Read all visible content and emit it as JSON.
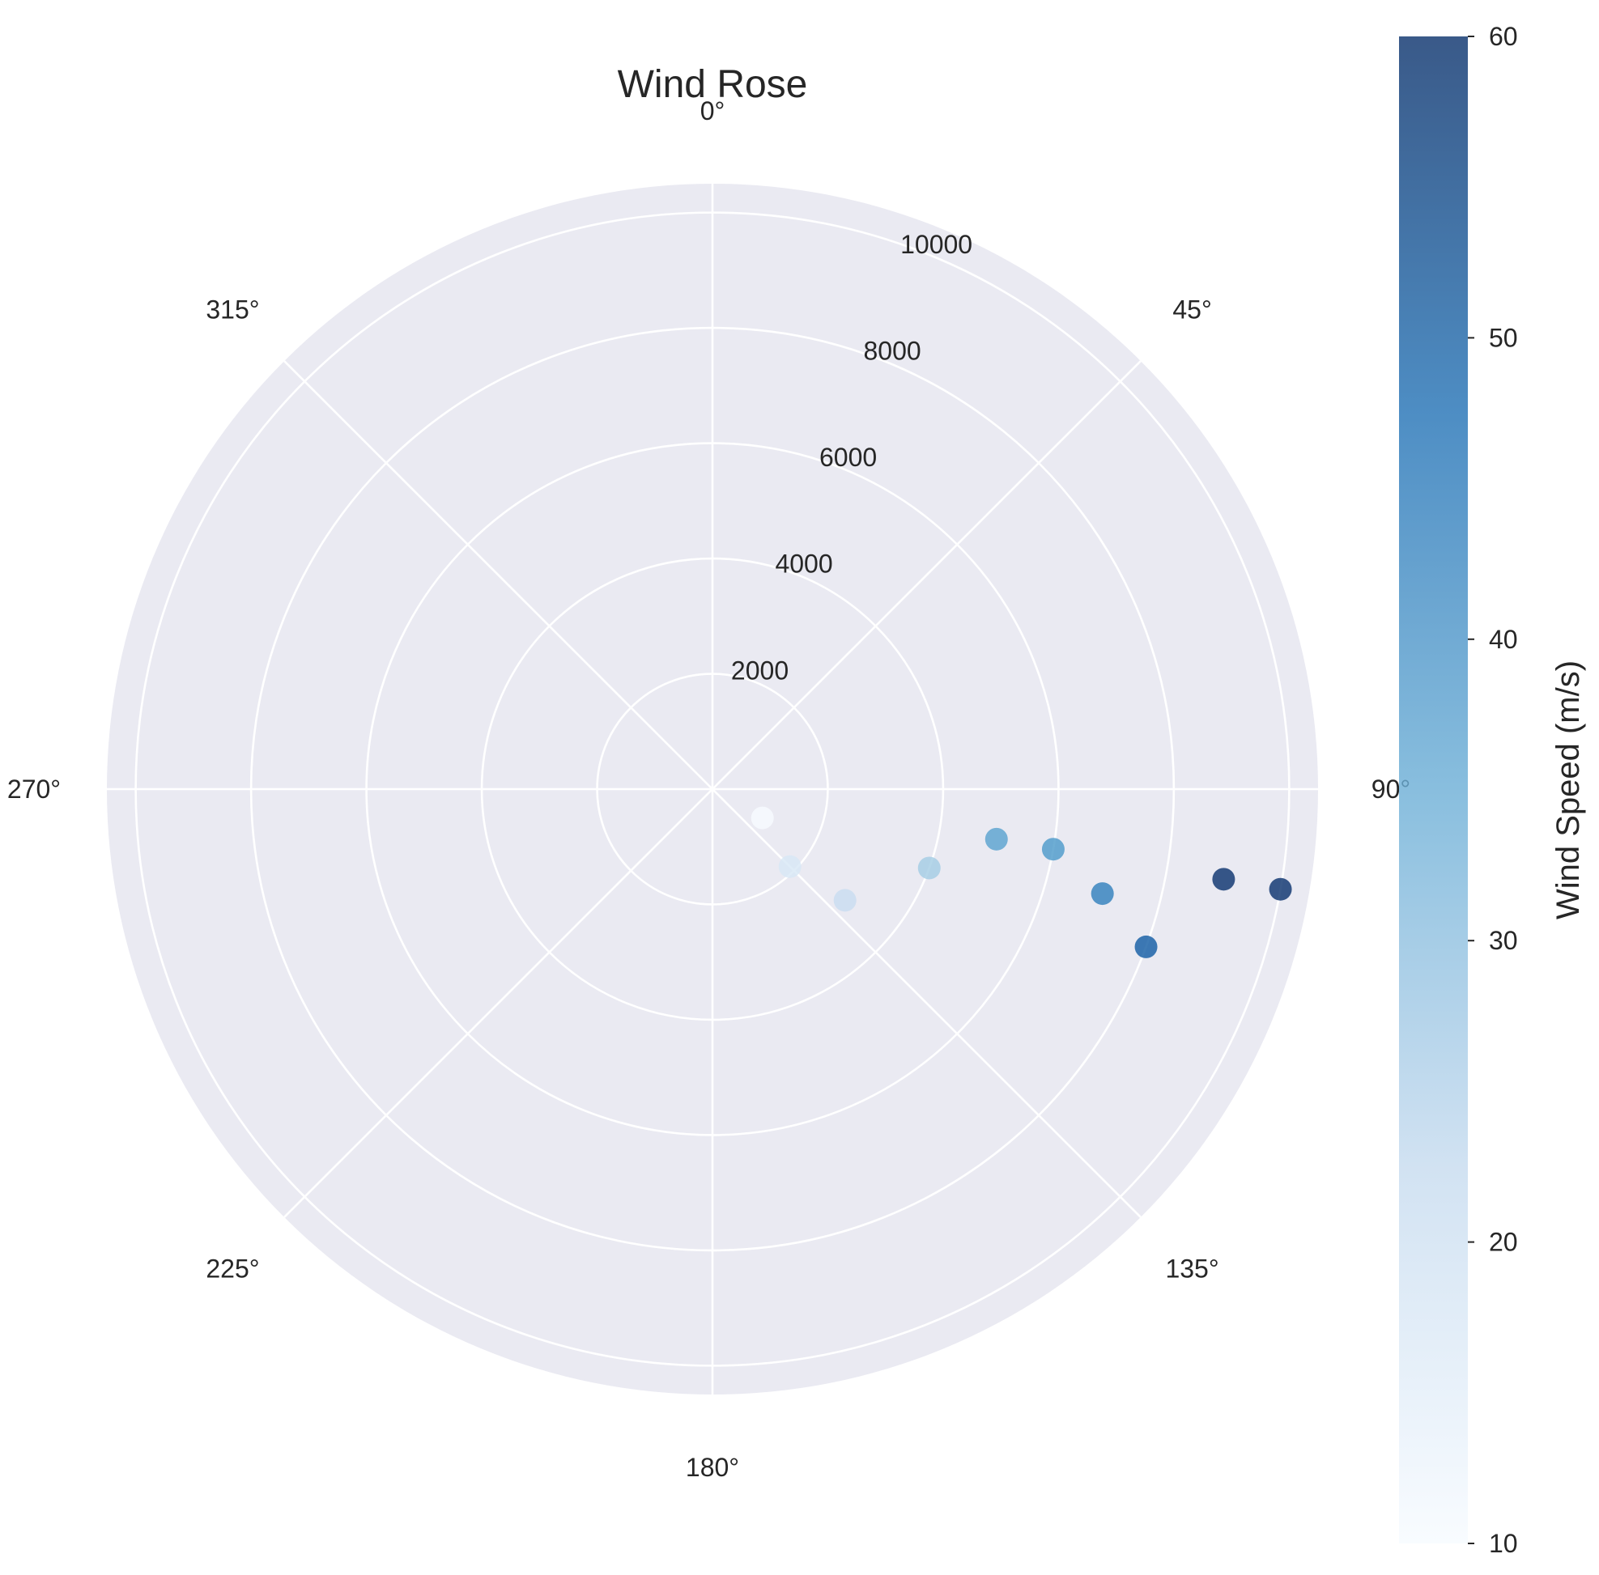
{
  "chart_data": {
    "type": "scatter",
    "projection": "polar",
    "title": "Wind Rose",
    "angular_axis": {
      "zero_location": "north",
      "direction": "clockwise",
      "tick_labels": [
        "0°",
        "45°",
        "90°",
        "135°",
        "180°",
        "225°",
        "270°",
        "315°"
      ]
    },
    "radial_axis": {
      "range": [
        0,
        10500
      ],
      "ticks": [
        2000,
        4000,
        6000,
        8000,
        10000
      ],
      "tick_labels": [
        "2000",
        "4000",
        "6000",
        "8000",
        "10000"
      ],
      "label_angle_deg": 22.5
    },
    "grid": true,
    "colorbar": {
      "label": "Wind Speed (m/s)",
      "range": [
        10,
        60
      ],
      "ticks": [
        10,
        20,
        30,
        40,
        50,
        60
      ],
      "tick_labels": [
        "10",
        "20",
        "30",
        "40",
        "50",
        "60"
      ],
      "colormap": "Blues",
      "placement": "right"
    },
    "points": [
      {
        "direction_deg": 120,
        "altitude": 1000,
        "speed": 10
      },
      {
        "direction_deg": 135,
        "altitude": 1900,
        "speed": 18
      },
      {
        "direction_deg": 130,
        "altitude": 3000,
        "speed": 22
      },
      {
        "direction_deg": 110,
        "altitude": 4000,
        "speed": 28
      },
      {
        "direction_deg": 100,
        "altitude": 5000,
        "speed": 38
      },
      {
        "direction_deg": 100,
        "altitude": 6000,
        "speed": 40
      },
      {
        "direction_deg": 105,
        "altitude": 7000,
        "speed": 45
      },
      {
        "direction_deg": 110,
        "altitude": 8000,
        "speed": 52
      },
      {
        "direction_deg": 100,
        "altitude": 9000,
        "speed": 60
      },
      {
        "direction_deg": 100,
        "altitude": 10000,
        "speed": 60
      }
    ]
  }
}
